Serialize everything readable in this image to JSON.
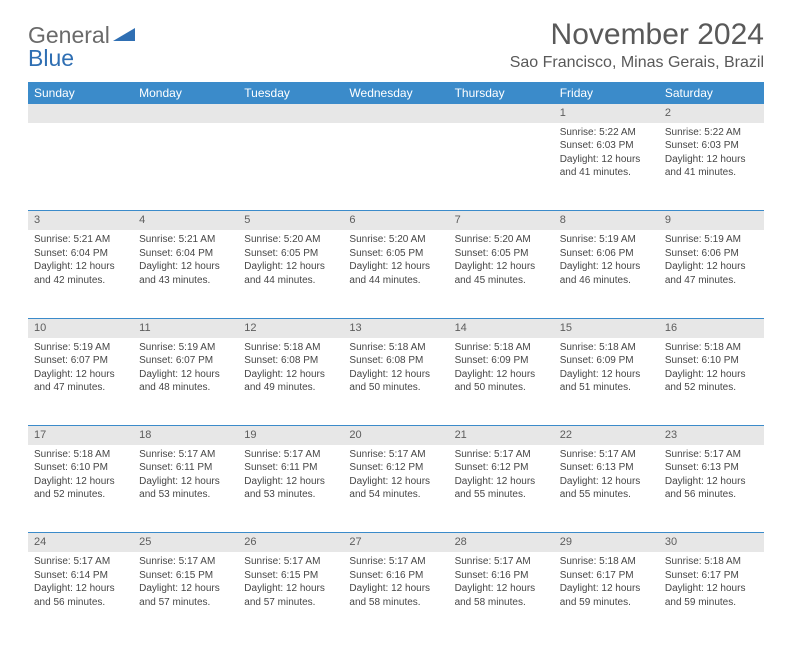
{
  "logo": {
    "word1": "General",
    "word2": "Blue"
  },
  "title": "November 2024",
  "location": "Sao Francisco, Minas Gerais, Brazil",
  "colors": {
    "header_bg": "#3b8bca",
    "header_text": "#ffffff",
    "daynum_bg": "#e7e7e7",
    "border": "#3b8bca",
    "body_text": "#464646",
    "title_text": "#595959"
  },
  "weekdays": [
    "Sunday",
    "Monday",
    "Tuesday",
    "Wednesday",
    "Thursday",
    "Friday",
    "Saturday"
  ],
  "weeks": [
    [
      null,
      null,
      null,
      null,
      null,
      {
        "n": "1",
        "sunrise": "5:22 AM",
        "sunset": "6:03 PM",
        "daylight": "12 hours and 41 minutes."
      },
      {
        "n": "2",
        "sunrise": "5:22 AM",
        "sunset": "6:03 PM",
        "daylight": "12 hours and 41 minutes."
      }
    ],
    [
      {
        "n": "3",
        "sunrise": "5:21 AM",
        "sunset": "6:04 PM",
        "daylight": "12 hours and 42 minutes."
      },
      {
        "n": "4",
        "sunrise": "5:21 AM",
        "sunset": "6:04 PM",
        "daylight": "12 hours and 43 minutes."
      },
      {
        "n": "5",
        "sunrise": "5:20 AM",
        "sunset": "6:05 PM",
        "daylight": "12 hours and 44 minutes."
      },
      {
        "n": "6",
        "sunrise": "5:20 AM",
        "sunset": "6:05 PM",
        "daylight": "12 hours and 44 minutes."
      },
      {
        "n": "7",
        "sunrise": "5:20 AM",
        "sunset": "6:05 PM",
        "daylight": "12 hours and 45 minutes."
      },
      {
        "n": "8",
        "sunrise": "5:19 AM",
        "sunset": "6:06 PM",
        "daylight": "12 hours and 46 minutes."
      },
      {
        "n": "9",
        "sunrise": "5:19 AM",
        "sunset": "6:06 PM",
        "daylight": "12 hours and 47 minutes."
      }
    ],
    [
      {
        "n": "10",
        "sunrise": "5:19 AM",
        "sunset": "6:07 PM",
        "daylight": "12 hours and 47 minutes."
      },
      {
        "n": "11",
        "sunrise": "5:19 AM",
        "sunset": "6:07 PM",
        "daylight": "12 hours and 48 minutes."
      },
      {
        "n": "12",
        "sunrise": "5:18 AM",
        "sunset": "6:08 PM",
        "daylight": "12 hours and 49 minutes."
      },
      {
        "n": "13",
        "sunrise": "5:18 AM",
        "sunset": "6:08 PM",
        "daylight": "12 hours and 50 minutes."
      },
      {
        "n": "14",
        "sunrise": "5:18 AM",
        "sunset": "6:09 PM",
        "daylight": "12 hours and 50 minutes."
      },
      {
        "n": "15",
        "sunrise": "5:18 AM",
        "sunset": "6:09 PM",
        "daylight": "12 hours and 51 minutes."
      },
      {
        "n": "16",
        "sunrise": "5:18 AM",
        "sunset": "6:10 PM",
        "daylight": "12 hours and 52 minutes."
      }
    ],
    [
      {
        "n": "17",
        "sunrise": "5:18 AM",
        "sunset": "6:10 PM",
        "daylight": "12 hours and 52 minutes."
      },
      {
        "n": "18",
        "sunrise": "5:17 AM",
        "sunset": "6:11 PM",
        "daylight": "12 hours and 53 minutes."
      },
      {
        "n": "19",
        "sunrise": "5:17 AM",
        "sunset": "6:11 PM",
        "daylight": "12 hours and 53 minutes."
      },
      {
        "n": "20",
        "sunrise": "5:17 AM",
        "sunset": "6:12 PM",
        "daylight": "12 hours and 54 minutes."
      },
      {
        "n": "21",
        "sunrise": "5:17 AM",
        "sunset": "6:12 PM",
        "daylight": "12 hours and 55 minutes."
      },
      {
        "n": "22",
        "sunrise": "5:17 AM",
        "sunset": "6:13 PM",
        "daylight": "12 hours and 55 minutes."
      },
      {
        "n": "23",
        "sunrise": "5:17 AM",
        "sunset": "6:13 PM",
        "daylight": "12 hours and 56 minutes."
      }
    ],
    [
      {
        "n": "24",
        "sunrise": "5:17 AM",
        "sunset": "6:14 PM",
        "daylight": "12 hours and 56 minutes."
      },
      {
        "n": "25",
        "sunrise": "5:17 AM",
        "sunset": "6:15 PM",
        "daylight": "12 hours and 57 minutes."
      },
      {
        "n": "26",
        "sunrise": "5:17 AM",
        "sunset": "6:15 PM",
        "daylight": "12 hours and 57 minutes."
      },
      {
        "n": "27",
        "sunrise": "5:17 AM",
        "sunset": "6:16 PM",
        "daylight": "12 hours and 58 minutes."
      },
      {
        "n": "28",
        "sunrise": "5:17 AM",
        "sunset": "6:16 PM",
        "daylight": "12 hours and 58 minutes."
      },
      {
        "n": "29",
        "sunrise": "5:18 AM",
        "sunset": "6:17 PM",
        "daylight": "12 hours and 59 minutes."
      },
      {
        "n": "30",
        "sunrise": "5:18 AM",
        "sunset": "6:17 PM",
        "daylight": "12 hours and 59 minutes."
      }
    ]
  ],
  "labels": {
    "sunrise": "Sunrise:",
    "sunset": "Sunset:",
    "daylight": "Daylight:"
  }
}
